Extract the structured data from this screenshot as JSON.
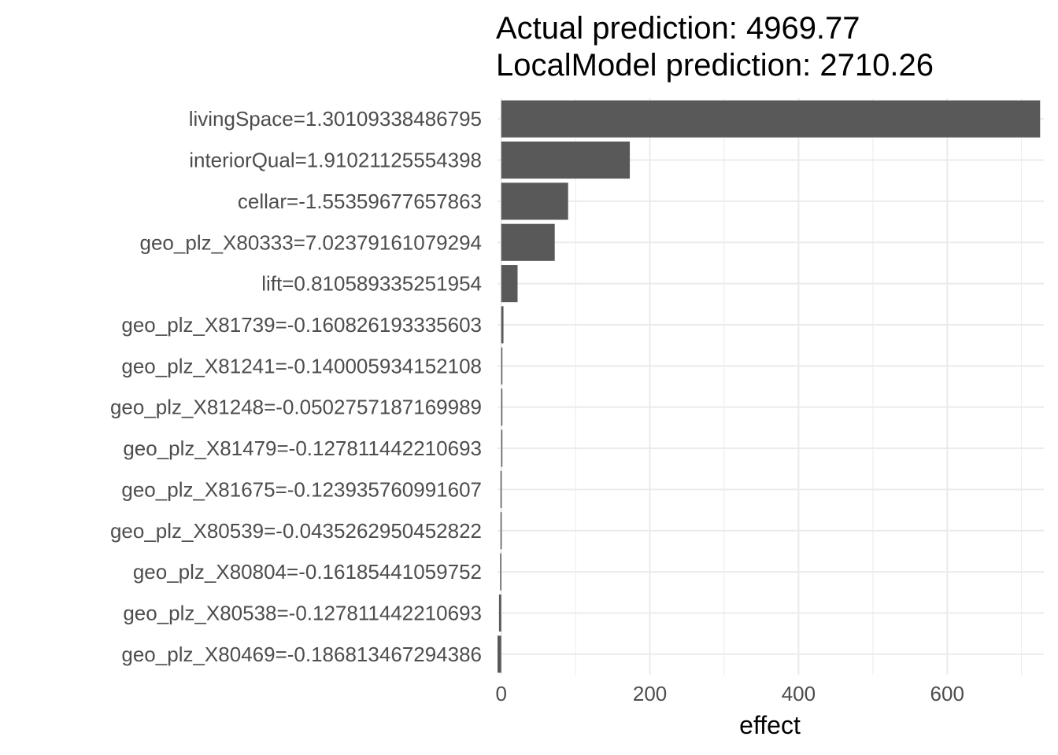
{
  "chart_data": {
    "type": "bar",
    "orientation": "horizontal",
    "title_lines": [
      "Actual prediction: 4969.77",
      "LocalModel prediction: 2710.26"
    ],
    "xlabel": "effect",
    "ylabel": "",
    "xlim": [
      -5,
      730
    ],
    "x_ticks": [
      "0",
      "200",
      "400",
      "600"
    ],
    "grid": true,
    "legend": "none",
    "bar_color": "#595959",
    "categories": [
      "livingSpace=1.30109338486795",
      "interiorQual=1.91021125554398",
      "cellar=-1.55359677657863",
      "geo_plz_X80333=7.02379161079294",
      "lift=0.810589335251954",
      "geo_plz_X81739=-0.160826193335603",
      "geo_plz_X81241=-0.140005934152108",
      "geo_plz_X81248=-0.0502757187169989",
      "geo_plz_X81479=-0.127811442210693",
      "geo_plz_X81675=-0.123935760991607",
      "geo_plz_X80539=-0.0435262950452822",
      "geo_plz_X80804=-0.16185441059752",
      "geo_plz_X80538=-0.127811442210693",
      "geo_plz_X80469=-0.186813467294386"
    ],
    "values": [
      725,
      173,
      90,
      72,
      22,
      3,
      1.5,
      0.4,
      0.3,
      -1,
      -1,
      -1.5,
      -3,
      -5
    ]
  }
}
